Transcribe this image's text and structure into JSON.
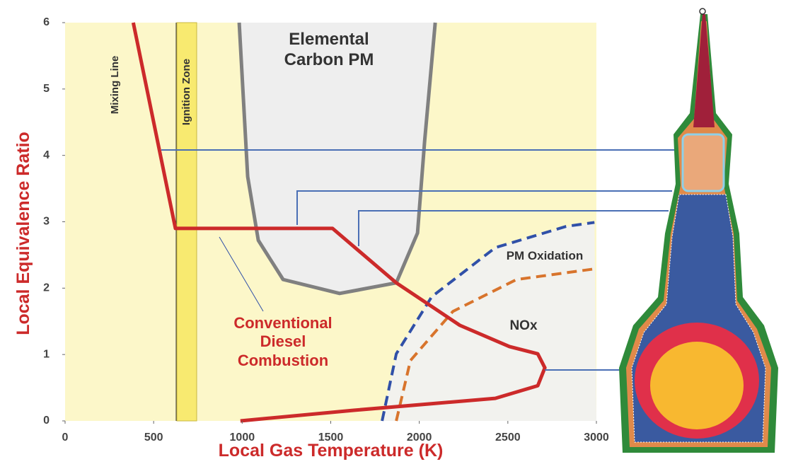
{
  "chart_data": {
    "type": "line",
    "x_label": "Local Gas Temperature (K)",
    "y_label": "Local Equivalence Ratio",
    "xlim": [
      0,
      3000
    ],
    "ylim": [
      0,
      6
    ],
    "xticks": [
      0,
      500,
      1000,
      1500,
      2000,
      2500,
      3000
    ],
    "yticks": [
      0,
      1,
      2,
      3,
      4,
      5,
      6
    ],
    "annotations": [
      "Mixing Line",
      "Ignition Zone"
    ],
    "series": [
      {
        "name": "Elemental Carbon PM",
        "color": "#808080",
        "fill": "#eeeeee",
        "dash": false,
        "x": [
          983,
          1031,
          1091,
          1231,
          1550,
          1870,
          1990,
          2030,
          2090
        ],
        "values": [
          6,
          3.68,
          2.72,
          2.13,
          1.92,
          2.08,
          2.83,
          4.21,
          6
        ]
      },
      {
        "name": "PM Oxidation",
        "color": "#3050a8",
        "fill": "#f2f2ee",
        "dash": true,
        "x": [
          1790,
          1870,
          2070,
          2429,
          2829,
          2989
        ],
        "values": [
          0,
          1.01,
          1.87,
          2.61,
          2.93,
          2.99
        ]
      },
      {
        "name": "NOx",
        "color": "#d8742c",
        "fill": null,
        "dash": true,
        "x": [
          1870,
          1950,
          2190,
          2549,
          2989
        ],
        "values": [
          0,
          0.91,
          1.65,
          2.13,
          2.29
        ]
      },
      {
        "name": "Conventional Diesel Combustion",
        "color": "#cc2a2a",
        "fill": null,
        "dash": false,
        "x": [
          385,
          623,
          1510,
          1870,
          2229,
          2509,
          2669,
          2709,
          2669,
          2429,
          1630,
          990
        ],
        "values": [
          6,
          2.9,
          2.9,
          2.08,
          1.44,
          1.12,
          1.01,
          0.8,
          0.53,
          0.34,
          0.16,
          0
        ]
      }
    ]
  }
}
